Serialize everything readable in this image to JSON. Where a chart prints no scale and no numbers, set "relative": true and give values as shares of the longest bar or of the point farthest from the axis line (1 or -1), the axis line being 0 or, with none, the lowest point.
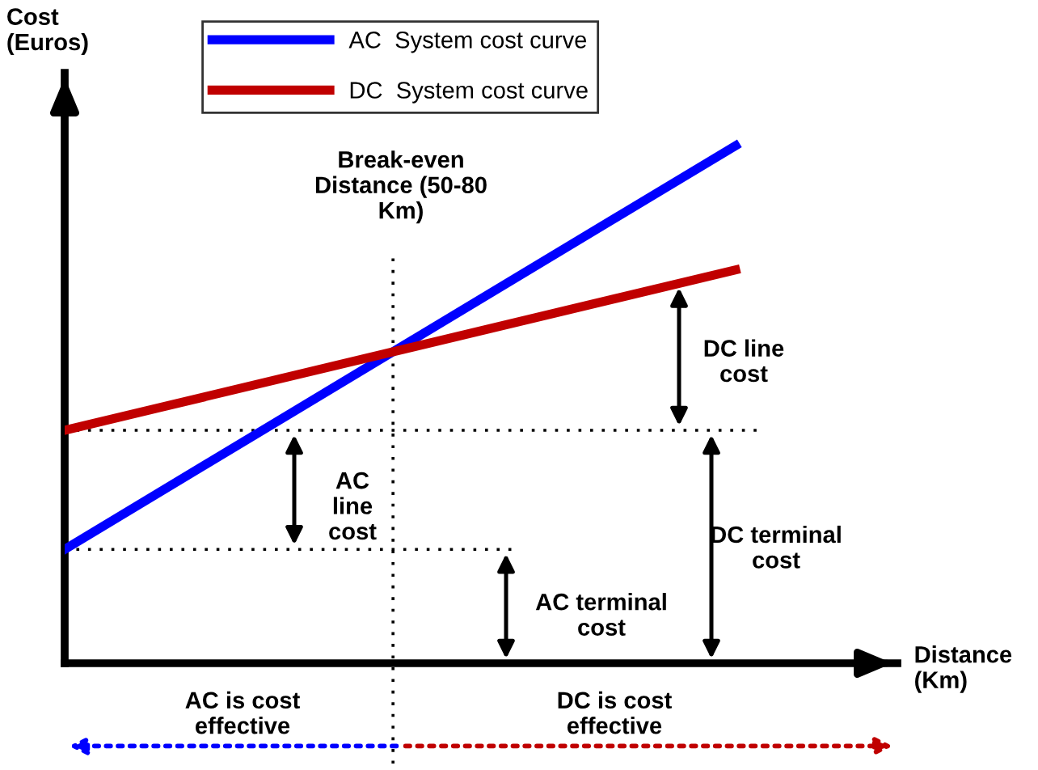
{
  "chart_data": {
    "type": "line",
    "relative": true,
    "categories": [
      null,
      null
    ],
    "xlabel": "Distance\n(Km)",
    "ylabel": "Cost\n(Euros)",
    "series": [
      {
        "name": "AC  System cost curve",
        "color": "#0000ff",
        "values": [
          0.22,
          1
        ]
      },
      {
        "name": "DC  System cost curve",
        "color": "#c00000",
        "values": [
          0.45,
          0.76
        ]
      }
    ],
    "ref_lines": [
      {
        "axis": "y",
        "value": 0.45,
        "color": "#000000",
        "line_style": "dotted"
      },
      {
        "axis": "y",
        "value": 0.22,
        "color": "#000000",
        "line_style": "dotted"
      }
    ],
    "annotations": [
      "Break-even\nDistance (50-80\nKm)",
      "DC line\ncost",
      "AC\nline\ncost",
      "DC terminal\ncost",
      "AC terminal\ncost",
      "AC is cost\neffective",
      "DC is cost\neffective"
    ],
    "legend": "top left",
    "marker": "none",
    "line_style": "solid"
  }
}
